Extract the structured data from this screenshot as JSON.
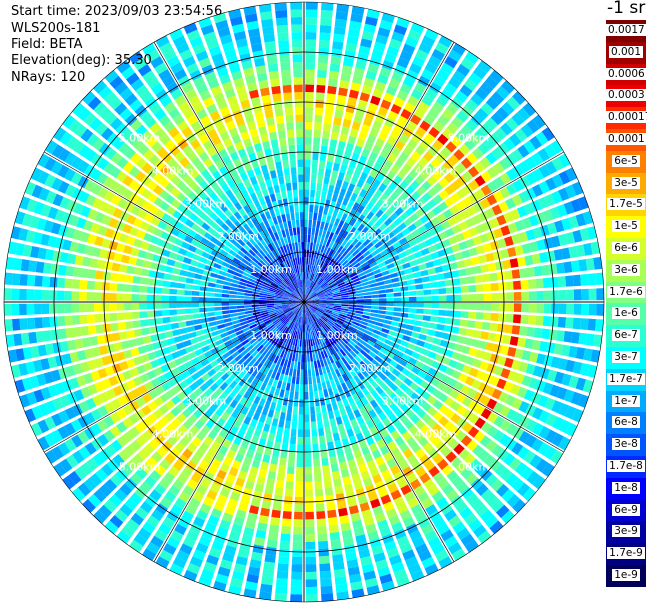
{
  "header": {
    "start_time": "Start time: 2023/09/03 23:54:56",
    "instrument": "WLS200s-181",
    "field": "Field: BETA",
    "elevation": "Elevation(deg): 35.30",
    "nrays": "NRays: 120"
  },
  "chart_data": {
    "type": "heatmap",
    "projection": "polar PPI scan",
    "rays": 120,
    "elevation_deg": 35.3,
    "field": "BETA",
    "unit": "m-1 sr-1",
    "unit_visible": "-1 sr",
    "range_rings_km": [
      1,
      2,
      3,
      4,
      5
    ],
    "ring_labels": [
      "1.00km",
      "2.00km",
      "3.00km",
      "4.00km",
      "5.00km"
    ],
    "color_scale": "log",
    "colorbar": [
      {
        "label": "0.0017",
        "color": "#800000"
      },
      {
        "label": "0.001",
        "color": "#a00000"
      },
      {
        "label": "0.0006",
        "color": "#d00000"
      },
      {
        "label": "0.0003",
        "color": "#ee0000"
      },
      {
        "label": "0.00017",
        "color": "#ff2a00"
      },
      {
        "label": "0.0001",
        "color": "#ff5500"
      },
      {
        "label": "6e-5",
        "color": "#ff8000"
      },
      {
        "label": "3e-5",
        "color": "#ffaa00"
      },
      {
        "label": "1.7e-5",
        "color": "#ffd400"
      },
      {
        "label": "1e-5",
        "color": "#ffff00"
      },
      {
        "label": "6e-6",
        "color": "#d4ff2b"
      },
      {
        "label": "3e-6",
        "color": "#aaff55"
      },
      {
        "label": "1.7e-6",
        "color": "#80ff80"
      },
      {
        "label": "1e-6",
        "color": "#55ffaa"
      },
      {
        "label": "6e-7",
        "color": "#2bffd4"
      },
      {
        "label": "3e-7",
        "color": "#00ffff"
      },
      {
        "label": "1.7e-7",
        "color": "#00d4ff"
      },
      {
        "label": "1e-7",
        "color": "#00aaff"
      },
      {
        "label": "6e-8",
        "color": "#0080ff"
      },
      {
        "label": "3e-8",
        "color": "#0055ff"
      },
      {
        "label": "1.7e-8",
        "color": "#002aff"
      },
      {
        "label": "1e-8",
        "color": "#0000ff"
      },
      {
        "label": "6e-9",
        "color": "#0000d0"
      },
      {
        "label": "3e-9",
        "color": "#0000a0"
      },
      {
        "label": "1.7e-9",
        "color": "#000080"
      },
      {
        "label": "1e-9",
        "color": "#00005a"
      }
    ],
    "radial_profile": [
      {
        "range_km": 0.0,
        "level": 6
      },
      {
        "range_km": 1.0,
        "level": 6
      },
      {
        "range_km": 2.0,
        "level": 9
      },
      {
        "range_km": 3.0,
        "level": 11
      },
      {
        "range_km": 3.6,
        "level": 15
      },
      {
        "range_km": 4.0,
        "level": 16
      },
      {
        "range_km": 4.5,
        "level": 14
      },
      {
        "range_km": 5.0,
        "level": 10
      },
      {
        "range_km": 6.0,
        "level": 9
      }
    ],
    "enhanced_arc": {
      "from_az_deg": 345,
      "to_az_deg": 195,
      "range_km": 4.25,
      "level": 20
    }
  }
}
